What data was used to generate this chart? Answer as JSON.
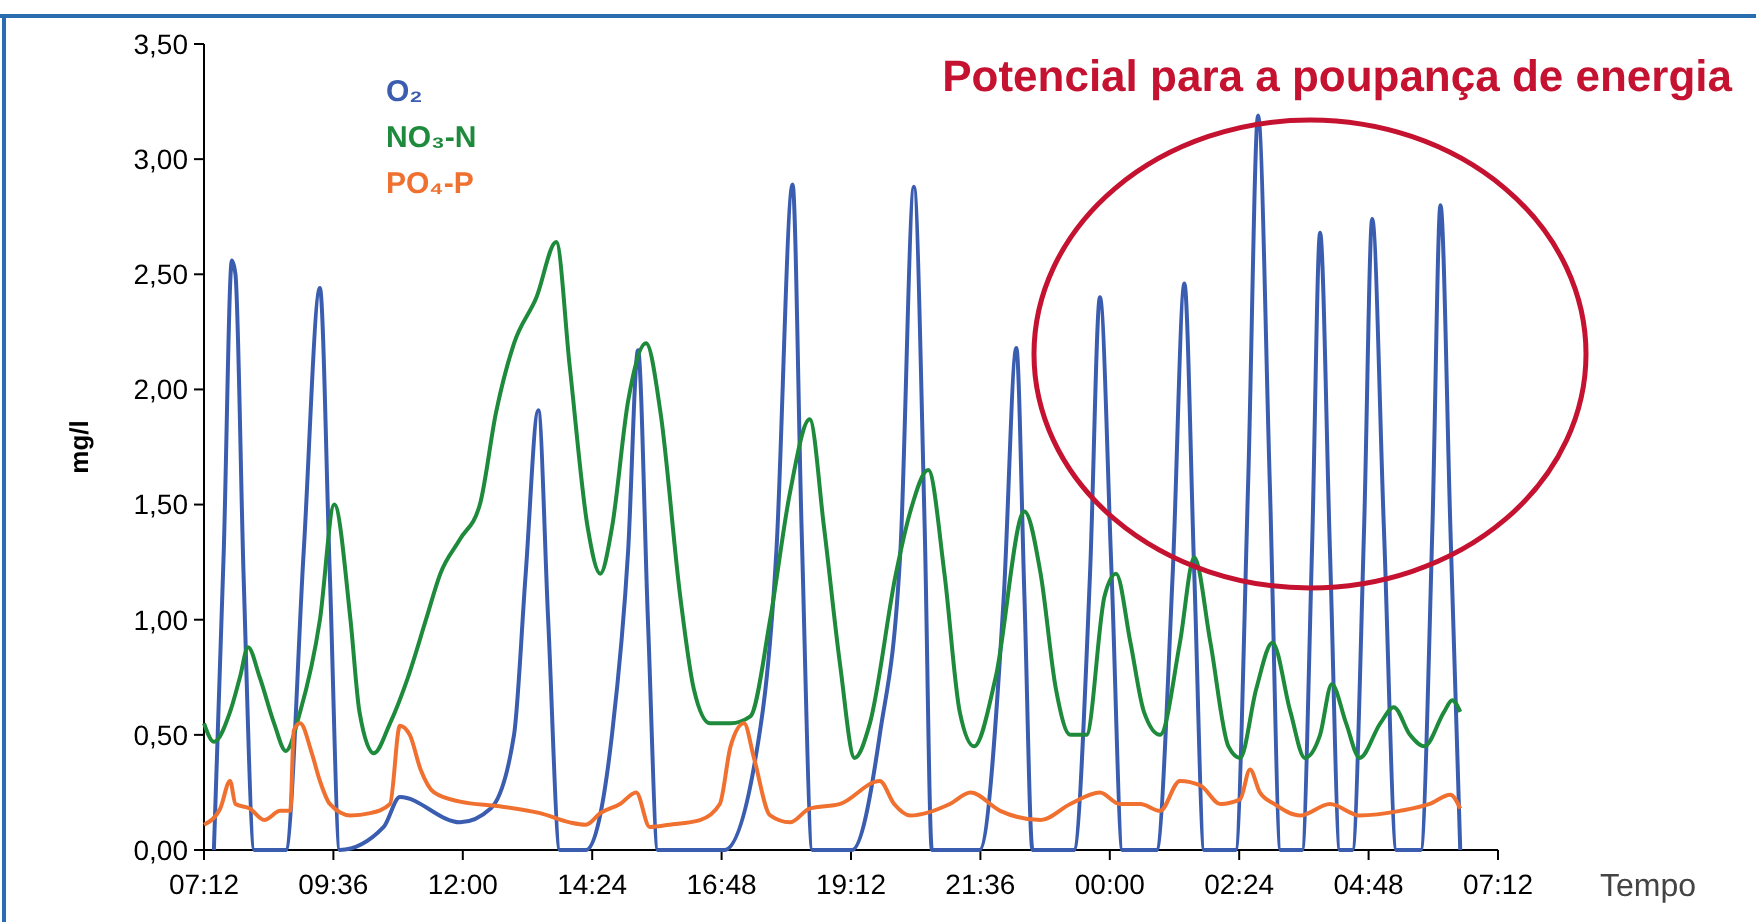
{
  "chart_data": {
    "type": "line",
    "title": "Potencial para a poupança de energia",
    "xlabel": "Tempo",
    "ylabel": "mg/l",
    "xlim": [
      "2000-01-01T07:12",
      "2000-01-02T07:12"
    ],
    "xticks": [
      {
        "value": "2000-01-01T07:12",
        "label": "07:12"
      },
      {
        "value": "2000-01-01T09:36",
        "label": "09:36"
      },
      {
        "value": "2000-01-01T12:00",
        "label": "12:00"
      },
      {
        "value": "2000-01-01T14:24",
        "label": "14:24"
      },
      {
        "value": "2000-01-01T16:48",
        "label": "16:48"
      },
      {
        "value": "2000-01-01T19:12",
        "label": "19:12"
      },
      {
        "value": "2000-01-01T21:36",
        "label": "21:36"
      },
      {
        "value": "2000-01-02T00:00",
        "label": "00:00"
      },
      {
        "value": "2000-01-02T02:24",
        "label": "02:24"
      },
      {
        "value": "2000-01-02T04:48",
        "label": "04:48"
      },
      {
        "value": "2000-01-02T07:12",
        "label": "07:12"
      }
    ],
    "ylim": [
      0,
      3.5
    ],
    "yticks": [
      {
        "value": 0,
        "label": "0,00"
      },
      {
        "value": 0.5,
        "label": "0,50"
      },
      {
        "value": 1,
        "label": "1,00"
      },
      {
        "value": 1.5,
        "label": "1,50"
      },
      {
        "value": 2,
        "label": "2,00"
      },
      {
        "value": 2.5,
        "label": "2,50"
      },
      {
        "value": 3,
        "label": "3,00"
      },
      {
        "value": 3.5,
        "label": "3,50"
      }
    ],
    "legend": "top left",
    "marker": "none",
    "line_style": "solid",
    "series": [
      {
        "name": "O₂",
        "color": "#3b5db0",
        "x": [
          "2000-01-01T07:23",
          "2000-01-01T07:34",
          "2000-01-01T07:43",
          "2000-01-01T07:47",
          "2000-01-01T07:56",
          "2000-01-01T08:08",
          "2000-01-01T08:43",
          "2000-01-01T09:03",
          "2000-01-01T09:21",
          "2000-01-01T09:32",
          "2000-01-01T09:43",
          "2000-01-01T10:32",
          "2000-01-01T10:50",
          "2000-01-01T11:57",
          "2000-01-01T12:31",
          "2000-01-01T12:57",
          "2000-01-01T13:10",
          "2000-01-01T13:24",
          "2000-01-01T13:35",
          "2000-01-01T13:48",
          "2000-01-01T14:17",
          "2000-01-01T14:46",
          "2000-01-01T15:04",
          "2000-01-01T15:15",
          "2000-01-01T15:26",
          "2000-01-01T15:37",
          "2000-01-01T16:51",
          "2000-01-01T17:24",
          "2000-01-01T17:49",
          "2000-01-01T18:07",
          "2000-01-01T18:17",
          "2000-01-01T18:29",
          "2000-01-01T19:13",
          "2000-01-01T19:44",
          "2000-01-01T20:07",
          "2000-01-01T20:22",
          "2000-01-01T20:34",
          "2000-01-01T20:42",
          "2000-01-01T21:35",
          "2000-01-01T22:02",
          "2000-01-01T22:16",
          "2000-01-01T22:25",
          "2000-01-01T22:34",
          "2000-01-01T23:20",
          "2000-01-01T23:38",
          "2000-01-01T23:49",
          "2000-01-02T00:02",
          "2000-01-02T00:14",
          "2000-01-02T00:52",
          "2000-01-02T01:10",
          "2000-01-02T01:23",
          "2000-01-02T01:34",
          "2000-01-02T01:45",
          "2000-01-02T02:20",
          "2000-01-02T02:34",
          "2000-01-02T02:45",
          "2000-01-02T02:58",
          "2000-01-02T03:10",
          "2000-01-02T03:34",
          "2000-01-02T03:45",
          "2000-01-02T03:54",
          "2000-01-02T04:05",
          "2000-01-02T04:16",
          "2000-01-02T04:30",
          "2000-01-02T04:43",
          "2000-01-02T04:52",
          "2000-01-02T05:05",
          "2000-01-02T05:19",
          "2000-01-02T05:46",
          "2000-01-02T05:59",
          "2000-01-02T06:08",
          "2000-01-02T06:19",
          "2000-01-02T06:30"
        ],
        "values": [
          0,
          1.3,
          2.56,
          2.5,
          1.2,
          0,
          0,
          1.3,
          2.44,
          1.2,
          0,
          0.1,
          0.23,
          0.12,
          0.18,
          0.5,
          1.2,
          1.91,
          1,
          0,
          0,
          0.5,
          1.3,
          2.17,
          1,
          0,
          0,
          0.36,
          1.3,
          2.89,
          1.4,
          0,
          0,
          0.5,
          1.3,
          2.88,
          1.4,
          0,
          0,
          1.1,
          2.18,
          1.1,
          0,
          0,
          1.2,
          2.4,
          1.2,
          0,
          0,
          1.2,
          2.46,
          1.2,
          0,
          0,
          1.6,
          3.19,
          1.6,
          0,
          0,
          1.3,
          2.68,
          1.3,
          0,
          0,
          1.4,
          2.74,
          1.4,
          0,
          0,
          1.4,
          2.8,
          1.4,
          0
        ]
      },
      {
        "name": "NO₃-N",
        "color": "#1e8a3c",
        "x": [
          "2000-01-01T07:12",
          "2000-01-01T07:23",
          "2000-01-01T07:41",
          "2000-01-01T07:52",
          "2000-01-01T08:01",
          "2000-01-01T08:14",
          "2000-01-01T08:30",
          "2000-01-01T08:43",
          "2000-01-01T08:59",
          "2000-01-01T09:21",
          "2000-01-01T09:37",
          "2000-01-01T09:55",
          "2000-01-01T10:05",
          "2000-01-01T10:21",
          "2000-01-01T10:39",
          "2000-01-01T10:59",
          "2000-01-01T11:19",
          "2000-01-01T11:35",
          "2000-01-01T11:57",
          "2000-01-01T12:19",
          "2000-01-01T12:37",
          "2000-01-01T12:57",
          "2000-01-01T13:22",
          "2000-01-01T13:44",
          "2000-01-01T13:59",
          "2000-01-01T14:19",
          "2000-01-01T14:33",
          "2000-01-01T14:46",
          "2000-01-01T15:04",
          "2000-01-01T15:24",
          "2000-01-01T15:40",
          "2000-01-01T16:02",
          "2000-01-01T16:17",
          "2000-01-01T16:35",
          "2000-01-01T16:58",
          "2000-01-01T17:20",
          "2000-01-01T17:42",
          "2000-01-01T18:04",
          "2000-01-01T18:26",
          "2000-01-01T18:42",
          "2000-01-01T19:00",
          "2000-01-01T19:16",
          "2000-01-01T19:33",
          "2000-01-01T20:02",
          "2000-01-01T20:18",
          "2000-01-01T20:38",
          "2000-01-01T20:56",
          "2000-01-01T21:13",
          "2000-01-01T21:29",
          "2000-01-01T21:53",
          "2000-01-01T22:25",
          "2000-01-01T22:43",
          "2000-01-01T23:00",
          "2000-01-01T23:16",
          "2000-01-01T23:34",
          "2000-01-01T23:54",
          "2000-01-02T00:07",
          "2000-01-02T00:23",
          "2000-01-02T00:38",
          "2000-01-02T00:56",
          "2000-01-02T01:18",
          "2000-01-02T01:34",
          "2000-01-02T01:52",
          "2000-01-02T02:12",
          "2000-01-02T02:25",
          "2000-01-02T02:43",
          "2000-01-02T03:01",
          "2000-01-02T03:21",
          "2000-01-02T03:37",
          "2000-01-02T03:54",
          "2000-01-02T04:07",
          "2000-01-02T04:23",
          "2000-01-02T04:38",
          "2000-01-02T05:01",
          "2000-01-02T05:16",
          "2000-01-02T05:34",
          "2000-01-02T05:50",
          "2000-01-02T06:12",
          "2000-01-02T06:21",
          "2000-01-02T06:30"
        ],
        "values": [
          0.55,
          0.47,
          0.6,
          0.75,
          0.88,
          0.75,
          0.55,
          0.43,
          0.6,
          1,
          1.5,
          1,
          0.6,
          0.42,
          0.55,
          0.75,
          1,
          1.2,
          1.35,
          1.5,
          1.9,
          2.2,
          2.4,
          2.64,
          2.1,
          1.4,
          1.2,
          1.4,
          1.95,
          2.2,
          1.9,
          1.1,
          0.7,
          0.55,
          0.55,
          0.58,
          1,
          1.55,
          1.87,
          1.4,
          0.8,
          0.4,
          0.55,
          1.2,
          1.47,
          1.65,
          1.2,
          0.6,
          0.45,
          0.75,
          1.47,
          1.2,
          0.7,
          0.5,
          0.5,
          1.1,
          1.2,
          0.9,
          0.6,
          0.5,
          0.9,
          1.27,
          0.9,
          0.45,
          0.4,
          0.7,
          0.9,
          0.6,
          0.4,
          0.5,
          0.72,
          0.55,
          0.4,
          0.55,
          0.62,
          0.5,
          0.45,
          0.6,
          0.65,
          0.6
        ]
      },
      {
        "name": "PO₄-P",
        "color": "#f07030",
        "x": [
          "2000-01-01T07:12",
          "2000-01-01T07:30",
          "2000-01-01T07:41",
          "2000-01-01T07:47",
          "2000-01-01T08:03",
          "2000-01-01T08:19",
          "2000-01-01T08:37",
          "2000-01-01T08:48",
          "2000-01-01T08:52",
          "2000-01-01T08:59",
          "2000-01-01T09:12",
          "2000-01-01T09:21",
          "2000-01-01T09:32",
          "2000-01-01T09:55",
          "2000-01-01T10:17",
          "2000-01-01T10:39",
          "2000-01-01T10:50",
          "2000-01-01T11:01",
          "2000-01-01T11:13",
          "2000-01-01T11:28",
          "2000-01-01T11:57",
          "2000-01-01T12:41",
          "2000-01-01T13:26",
          "2000-01-01T13:59",
          "2000-01-01T14:17",
          "2000-01-01T14:33",
          "2000-01-01T14:55",
          "2000-01-01T15:13",
          "2000-01-01T15:28",
          "2000-01-01T15:50",
          "2000-01-01T16:24",
          "2000-01-01T16:46",
          "2000-01-01T16:58",
          "2000-01-01T17:13",
          "2000-01-01T17:24",
          "2000-01-01T17:42",
          "2000-01-01T18:04",
          "2000-01-01T18:26",
          "2000-01-01T19:00",
          "2000-01-01T19:44",
          "2000-01-01T20:00",
          "2000-01-01T20:18",
          "2000-01-01T21:02",
          "2000-01-01T21:25",
          "2000-01-01T21:58",
          "2000-01-01T22:43",
          "2000-01-01T23:16",
          "2000-01-01T23:49",
          "2000-01-02T00:11",
          "2000-01-02T00:34",
          "2000-01-02T00:56",
          "2000-01-02T01:18",
          "2000-01-02T01:41",
          "2000-01-02T02:03",
          "2000-01-02T02:25",
          "2000-01-02T02:36",
          "2000-01-02T02:47",
          "2000-01-02T03:03",
          "2000-01-02T03:32",
          "2000-01-02T04:05",
          "2000-01-02T04:38",
          "2000-01-02T05:23",
          "2000-01-02T05:56",
          "2000-01-02T06:19",
          "2000-01-02T06:30"
        ],
        "values": [
          0.11,
          0.18,
          0.3,
          0.2,
          0.18,
          0.13,
          0.17,
          0.17,
          0.52,
          0.55,
          0.42,
          0.3,
          0.2,
          0.15,
          0.16,
          0.2,
          0.54,
          0.5,
          0.35,
          0.25,
          0.21,
          0.19,
          0.16,
          0.12,
          0.11,
          0.16,
          0.2,
          0.25,
          0.1,
          0.11,
          0.13,
          0.2,
          0.45,
          0.55,
          0.4,
          0.15,
          0.12,
          0.18,
          0.2,
          0.3,
          0.2,
          0.15,
          0.2,
          0.25,
          0.17,
          0.13,
          0.2,
          0.25,
          0.2,
          0.2,
          0.17,
          0.3,
          0.28,
          0.2,
          0.22,
          0.35,
          0.25,
          0.2,
          0.15,
          0.2,
          0.15,
          0.17,
          0.2,
          0.24,
          0.18
        ]
      }
    ]
  }
}
